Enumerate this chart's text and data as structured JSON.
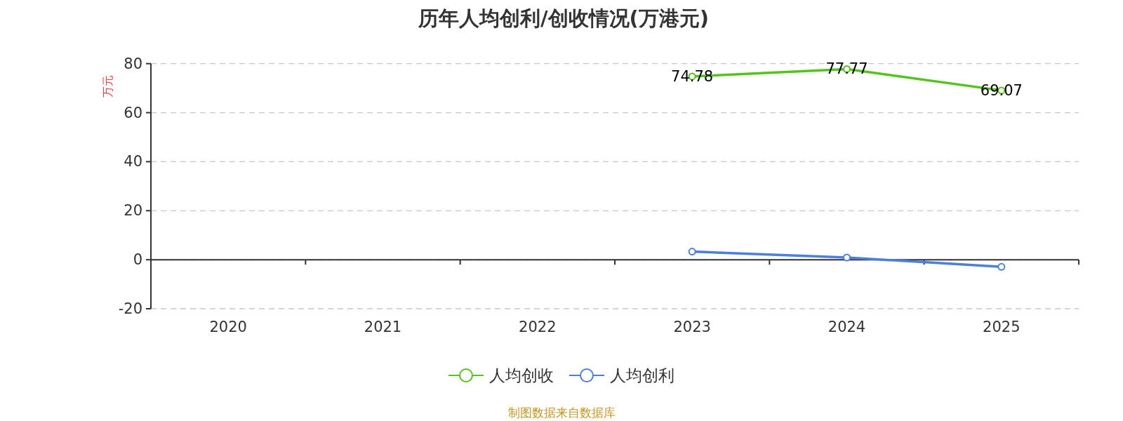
{
  "chart_data": {
    "type": "line",
    "title": "历年人均创利/创收情况(万港元)",
    "ylabel": "万元",
    "categories": [
      "2020",
      "2021",
      "2022",
      "2023",
      "2024",
      "2025"
    ],
    "series": [
      {
        "name": "人均创收",
        "color": "#52c41a",
        "values": [
          null,
          null,
          null,
          74.78,
          77.77,
          69.07
        ],
        "value_labels": [
          null,
          null,
          null,
          "74.78",
          "77.77",
          "69.07"
        ]
      },
      {
        "name": "人均创利",
        "color": "#4a7fe0",
        "values": [
          null,
          null,
          null,
          3.3,
          0.9,
          -2.9
        ]
      }
    ],
    "ylim": [
      -20,
      80
    ],
    "yticks": [
      -20,
      0,
      20,
      40,
      60,
      80
    ],
    "grid": "y",
    "legend": "bottom",
    "marker": "circle",
    "line_style": "solid",
    "annotations": [
      "制图数据来自数据库"
    ]
  }
}
